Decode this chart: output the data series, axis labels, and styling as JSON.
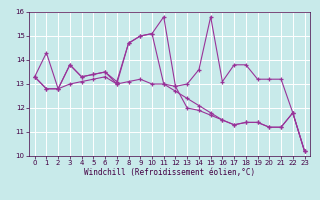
{
  "xlabel": "Windchill (Refroidissement éolien,°C)",
  "background_color": "#c8eaea",
  "grid_color": "#ffffff",
  "line_color": "#993399",
  "xlim": [
    -0.5,
    23.5
  ],
  "ylim": [
    10,
    16
  ],
  "yticks": [
    10,
    11,
    12,
    13,
    14,
    15,
    16
  ],
  "xticks": [
    0,
    1,
    2,
    3,
    4,
    5,
    6,
    7,
    8,
    9,
    10,
    11,
    12,
    13,
    14,
    15,
    16,
    17,
    18,
    19,
    20,
    21,
    22,
    23
  ],
  "series1": [
    13.3,
    14.3,
    12.8,
    13.8,
    13.3,
    13.4,
    13.5,
    13.1,
    14.7,
    15.0,
    15.1,
    15.8,
    12.9,
    13.0,
    13.6,
    15.8,
    13.1,
    13.8,
    13.8,
    13.2,
    13.2,
    13.2,
    11.8,
    10.2
  ],
  "series2": [
    13.3,
    12.8,
    12.8,
    13.8,
    13.3,
    13.4,
    13.5,
    13.0,
    14.7,
    15.0,
    15.1,
    13.0,
    12.9,
    12.0,
    11.9,
    11.7,
    11.5,
    11.3,
    11.4,
    11.4,
    11.2,
    11.2,
    11.8,
    10.2
  ],
  "series3": [
    13.3,
    12.8,
    12.8,
    13.0,
    13.1,
    13.2,
    13.3,
    13.0,
    13.1,
    13.2,
    13.0,
    13.0,
    12.7,
    12.4,
    12.1,
    11.8,
    11.5,
    11.3,
    11.4,
    11.4,
    11.2,
    11.2,
    11.8,
    10.2
  ],
  "tick_fontsize": 5,
  "xlabel_fontsize": 5.5,
  "spine_color": "#440044"
}
